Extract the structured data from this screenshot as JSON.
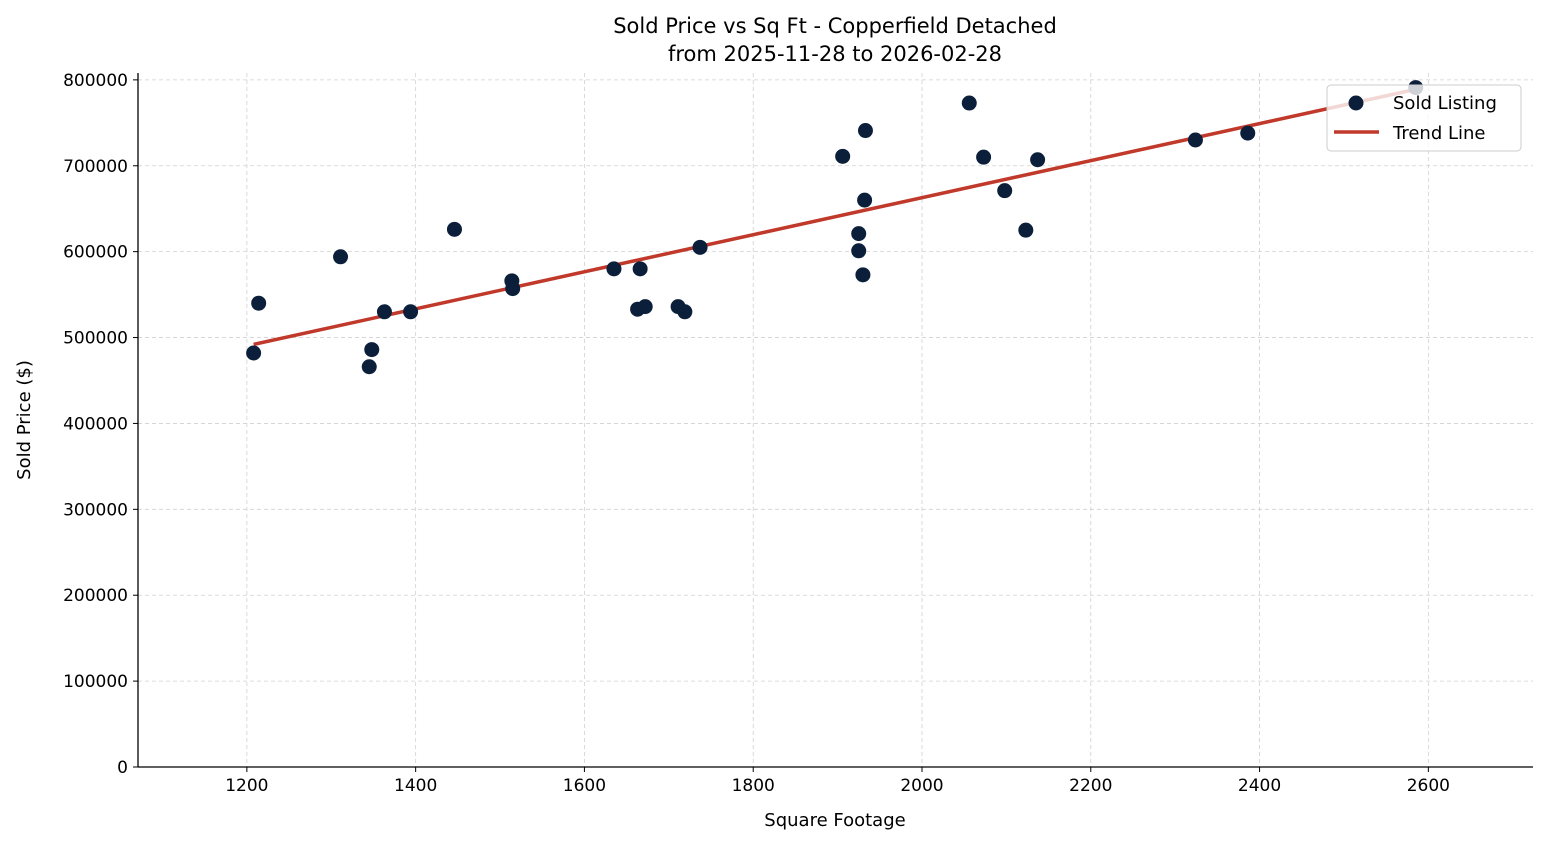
{
  "chart_data": {
    "type": "scatter",
    "title": "Sold Price vs Sq Ft - Copperfield Detached",
    "subtitle": "from 2025-11-28 to 2026-02-28",
    "xlabel": "Square Footage",
    "ylabel": "Sold Price ($)",
    "xlim": [
      1071,
      2724
    ],
    "ylim": [
      0,
      808000
    ],
    "xticks": [
      1200,
      1400,
      1600,
      1800,
      2000,
      2200,
      2400,
      2600
    ],
    "yticks": [
      0,
      100000,
      200000,
      300000,
      400000,
      500000,
      600000,
      700000,
      800000
    ],
    "grid": true,
    "legend_position": "top-right",
    "series": [
      {
        "name": "Sold Listing",
        "color": "#0b1f3a",
        "points": [
          [
            1208,
            482000
          ],
          [
            1214,
            540000
          ],
          [
            1311,
            594000
          ],
          [
            1345,
            466000
          ],
          [
            1348,
            486000
          ],
          [
            1363,
            530000
          ],
          [
            1394,
            530000
          ],
          [
            1446,
            626000
          ],
          [
            1514,
            566000
          ],
          [
            1515,
            557000
          ],
          [
            1635,
            580000
          ],
          [
            1663,
            533000
          ],
          [
            1666,
            580000
          ],
          [
            1672,
            536000
          ],
          [
            1711,
            536000
          ],
          [
            1719,
            530000
          ],
          [
            1737,
            605000
          ],
          [
            1906,
            711000
          ],
          [
            1933,
            741000
          ],
          [
            1932,
            660000
          ],
          [
            1925,
            621000
          ],
          [
            1925,
            601000
          ],
          [
            1930,
            573000
          ],
          [
            2056,
            773000
          ],
          [
            2073,
            710000
          ],
          [
            2098,
            671000
          ],
          [
            2123,
            625000
          ],
          [
            2137,
            707000
          ],
          [
            2324,
            730000
          ],
          [
            2386,
            738000
          ],
          [
            2585,
            791000
          ]
        ]
      },
      {
        "name": "Trend Line",
        "color": "#c0392b",
        "type": "line",
        "points": [
          [
            1208,
            492000
          ],
          [
            2585,
            789000
          ]
        ]
      }
    ]
  }
}
